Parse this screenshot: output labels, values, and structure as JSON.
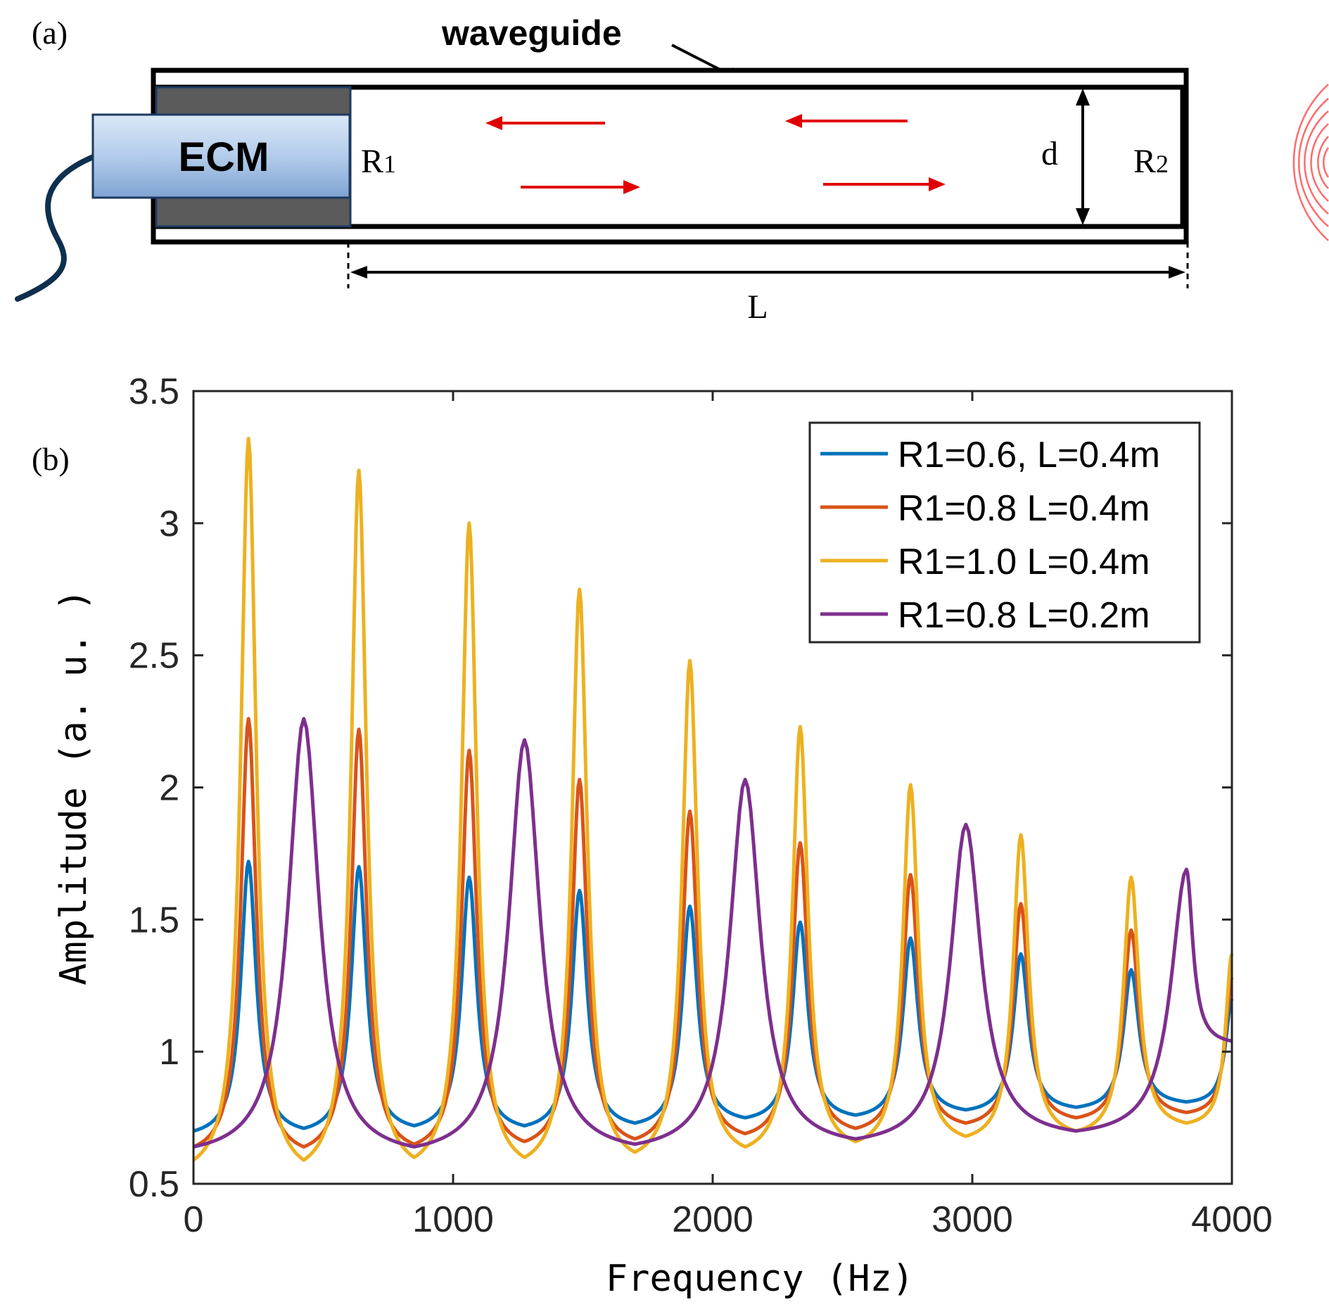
{
  "panel_a": {
    "label": "(a)",
    "waveguide_label": "waveguide",
    "ecm_label": "ECM",
    "r1_main": "R",
    "r1_sub": "1",
    "r2_main": "R",
    "r2_sub": "2",
    "d_label": "d",
    "l_label": "L"
  },
  "panel_b": {
    "label": "(b)"
  },
  "colors": {
    "blue": "#0072BD",
    "orange": "#D95319",
    "yellow": "#EDB120",
    "purple": "#7E2F8E",
    "arrow_red": "#E00000",
    "tube_line": "#000000",
    "backing": "#5a5a5a",
    "ecm_fill": "#a9c4e6",
    "cable": "#0f2f4f"
  },
  "icons": {
    "sound_waves": "sound-waves-icon",
    "cable": "cable-icon",
    "microphone": "microphone-icon"
  },
  "chart_data": {
    "type": "line",
    "title": "",
    "xlabel": "Frequency (Hz)",
    "ylabel": "Amplitude (a. u. )",
    "xlim": [
      0,
      4000
    ],
    "ylim": [
      0.5,
      3.5
    ],
    "xticks": [
      0,
      1000,
      2000,
      3000,
      4000
    ],
    "xtick_labels": [
      "0",
      "1000",
      "2000",
      "3000",
      "4000"
    ],
    "yticks": [
      0.5,
      1,
      1.5,
      2,
      2.5,
      3,
      3.5
    ],
    "ytick_labels": [
      "0.5",
      "1",
      "1.5",
      "2",
      "2.5",
      "3",
      "3.5"
    ],
    "legend_position": "top-right",
    "series": [
      {
        "name": "R1=0.6, L=0.4m",
        "color": "#0072BD",
        "x": [
          0,
          212,
          425,
          637,
          850,
          1062,
          1275,
          1487,
          1700,
          1912,
          2125,
          2337,
          2550,
          2762,
          2975,
          3187,
          3400,
          3612,
          3825,
          4000
        ],
        "y": [
          0.7,
          1.72,
          0.71,
          1.7,
          0.72,
          1.66,
          0.72,
          1.61,
          0.73,
          1.55,
          0.75,
          1.49,
          0.76,
          1.43,
          0.78,
          1.37,
          0.79,
          1.31,
          0.81,
          1.2
        ]
      },
      {
        "name": "R1=0.8 L=0.4m",
        "color": "#D95319",
        "x": [
          0,
          212,
          425,
          637,
          850,
          1062,
          1275,
          1487,
          1700,
          1912,
          2125,
          2337,
          2550,
          2762,
          2975,
          3187,
          3400,
          3612,
          3825,
          4000
        ],
        "y": [
          0.64,
          2.26,
          0.64,
          2.22,
          0.65,
          2.14,
          0.66,
          2.03,
          0.67,
          1.91,
          0.69,
          1.79,
          0.71,
          1.67,
          0.73,
          1.56,
          0.75,
          1.46,
          0.77,
          1.28
        ]
      },
      {
        "name": "R1=1.0 L=0.4m",
        "color": "#EDB120",
        "x": [
          0,
          212,
          425,
          637,
          850,
          1062,
          1275,
          1487,
          1700,
          1912,
          2125,
          2337,
          2550,
          2762,
          2975,
          3187,
          3400,
          3612,
          3825,
          4000
        ],
        "y": [
          0.59,
          3.32,
          0.59,
          3.2,
          0.6,
          3.0,
          0.6,
          2.75,
          0.62,
          2.48,
          0.64,
          2.23,
          0.66,
          2.01,
          0.68,
          1.82,
          0.7,
          1.66,
          0.73,
          1.37
        ]
      },
      {
        "name": "R1=0.8 L=0.2m",
        "color": "#7E2F8E",
        "x": [
          0,
          425,
          850,
          1275,
          1700,
          2125,
          2550,
          2975,
          3400,
          3825,
          4000
        ],
        "y": [
          0.64,
          2.26,
          0.64,
          2.18,
          0.65,
          2.03,
          0.67,
          1.86,
          0.7,
          1.69,
          1.04
        ]
      }
    ]
  }
}
